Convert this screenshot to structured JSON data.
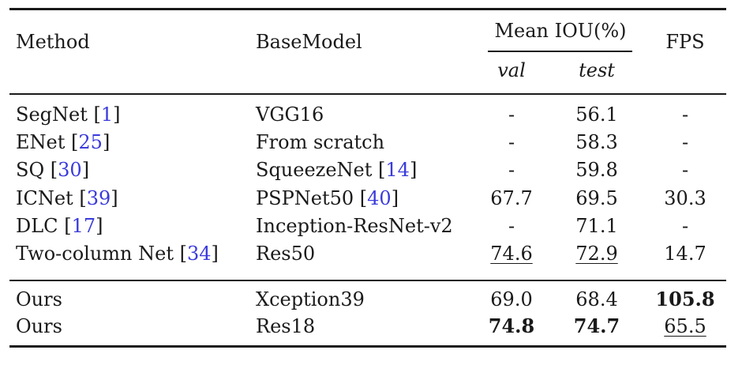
{
  "header": {
    "method": "Method",
    "base_model": "BaseModel",
    "mean_iou": "Mean IOU(%)",
    "val": "val",
    "test": "test",
    "fps": "FPS"
  },
  "rows": [
    {
      "method": "SegNet",
      "method_cite": "1",
      "base": "VGG16",
      "base_cite": "",
      "val": "-",
      "test": "56.1",
      "fps": "-"
    },
    {
      "method": "ENet",
      "method_cite": "25",
      "base": "From scratch",
      "base_cite": "",
      "val": "-",
      "test": "58.3",
      "fps": "-"
    },
    {
      "method": "SQ",
      "method_cite": "30",
      "base": "SqueezeNet",
      "base_cite": "14",
      "val": "-",
      "test": "59.8",
      "fps": "-"
    },
    {
      "method": "ICNet",
      "method_cite": "39",
      "base": "PSPNet50",
      "base_cite": "40",
      "val": "67.7",
      "test": "69.5",
      "fps": "30.3"
    },
    {
      "method": "DLC",
      "method_cite": "17",
      "base": "Inception-ResNet-v2",
      "base_cite": "",
      "val": "-",
      "test": "71.1",
      "fps": "-"
    },
    {
      "method": "Two-column Net",
      "method_cite": "34",
      "base": "Res50",
      "base_cite": "",
      "val": "74.6",
      "test": "72.9",
      "fps": "14.7"
    }
  ],
  "ours_rows": [
    {
      "method": "Ours",
      "base": "Xception39",
      "val": "69.0",
      "test": "68.4",
      "fps": "105.8"
    },
    {
      "method": "Ours",
      "base": "Res18",
      "val": "74.8",
      "test": "74.7",
      "fps": "65.5"
    }
  ]
}
